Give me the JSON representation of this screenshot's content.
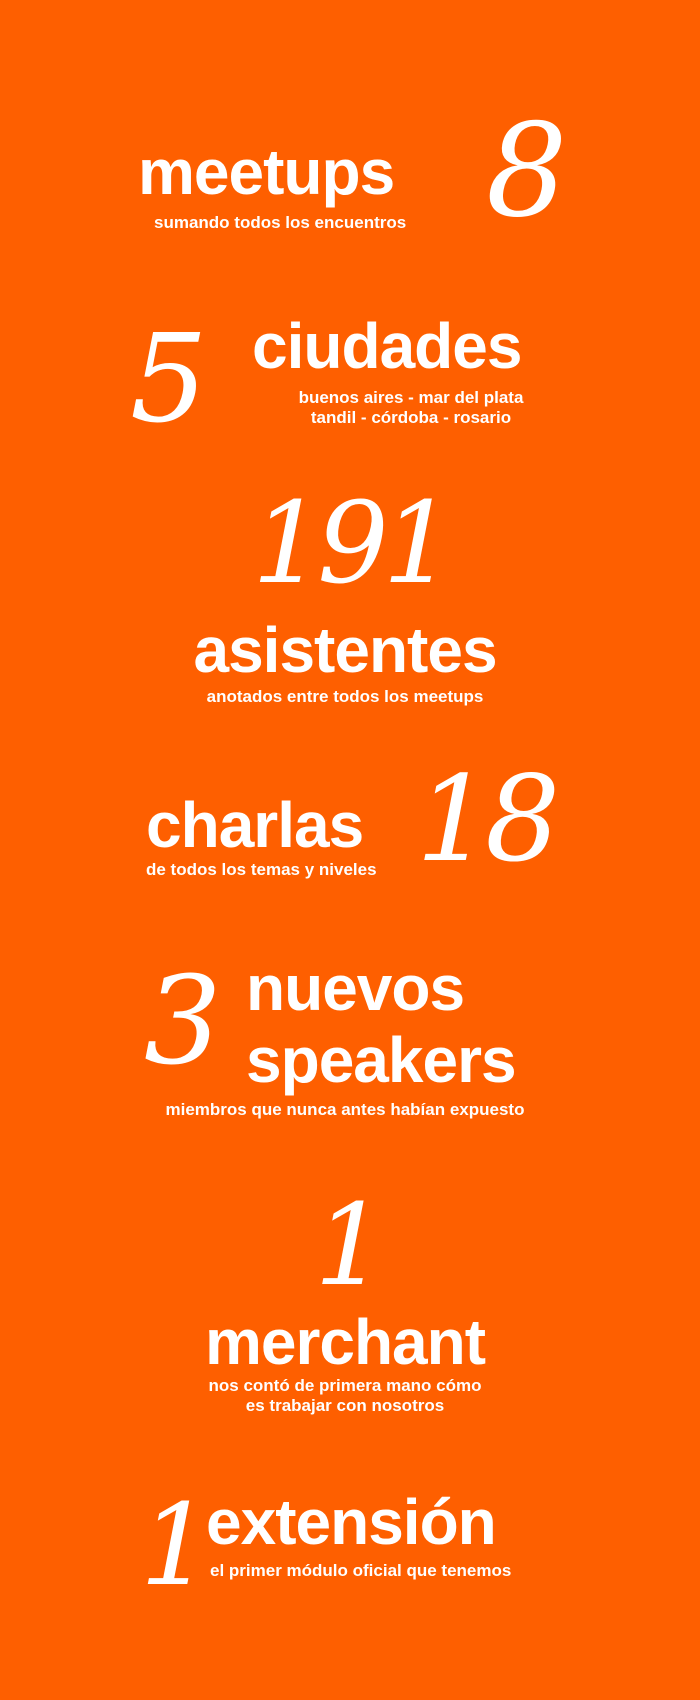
{
  "background_color": "#fe5f00",
  "text_color": "#ffffff",
  "stats": {
    "meetups": {
      "number": "8",
      "label": "meetups",
      "sub": "sumando todos los encuentros"
    },
    "ciudades": {
      "number": "5",
      "label": "ciudades",
      "sub_line1": "buenos aires -  mar del plata",
      "sub_line2": "tandil - córdoba - rosario"
    },
    "asistentes": {
      "number": "191",
      "label": "asistentes",
      "sub": "anotados entre todos los meetups"
    },
    "charlas": {
      "number": "18",
      "label": "charlas",
      "sub": "de todos los temas y niveles"
    },
    "speakers": {
      "number": "3",
      "label_line1": "nuevos",
      "label_line2": "speakers",
      "sub": "miembros que nunca antes habían expuesto"
    },
    "merchant": {
      "number": "1",
      "label": "merchant",
      "sub_line1": "nos contó de primera mano cómo",
      "sub_line2": "es trabajar con nosotros"
    },
    "extension": {
      "number": "1",
      "label": "extensión",
      "sub": "el primer módulo oficial que tenemos"
    }
  }
}
